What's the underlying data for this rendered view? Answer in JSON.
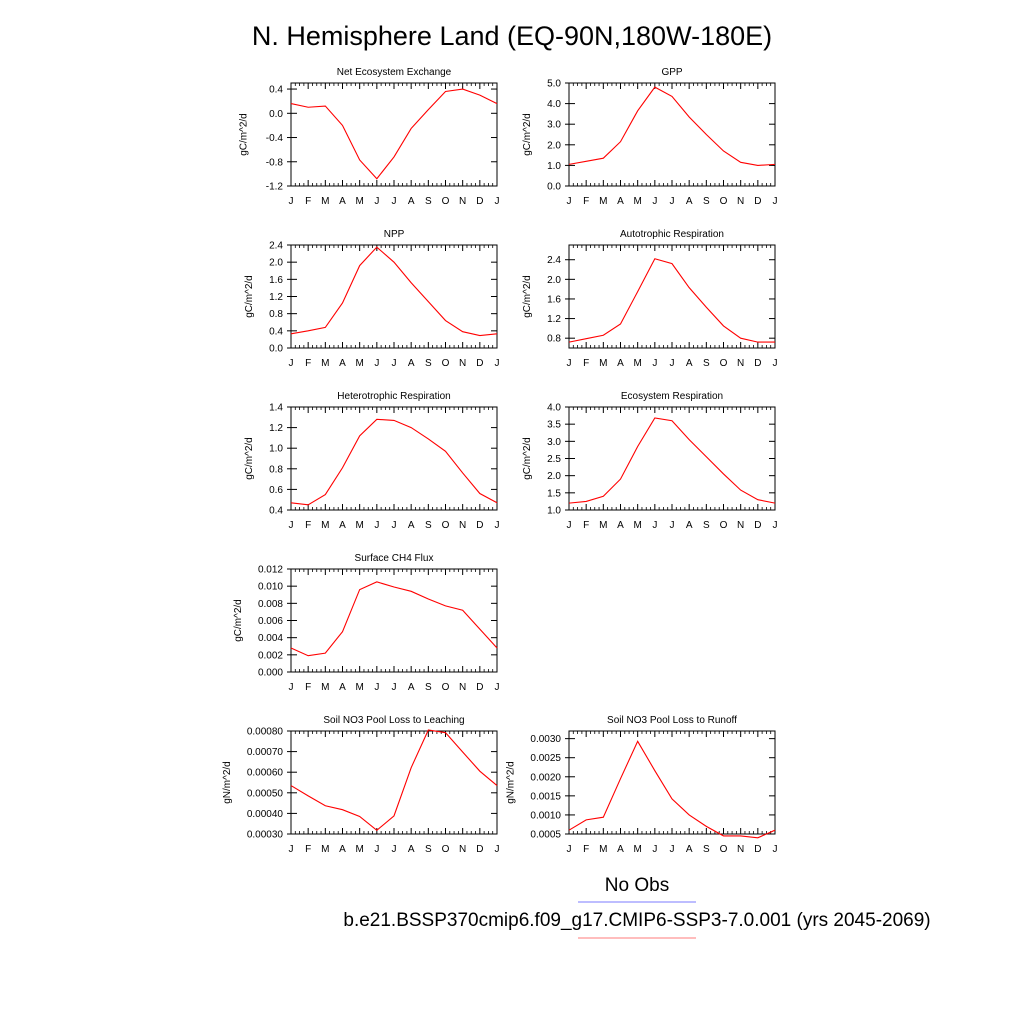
{
  "figure": {
    "title": "N. Hemisphere Land (EQ-90N,180W-180E)",
    "legend": {
      "obs_label": "No Obs",
      "model_label": "b.e21.BSSP370cmip6.f09_g17.CMIP6-SSP3-7.0.001 (yrs 2045-2069)",
      "obs_color": "#7b7bff",
      "model_color": "#ff7b7b"
    },
    "line_color": "#ff0000"
  },
  "chart_data": [
    {
      "type": "line",
      "title": "Net Ecosystem Exchange",
      "ylabel": "gC/m^2/d",
      "categories": [
        "J",
        "F",
        "M",
        "A",
        "M",
        "J",
        "J",
        "A",
        "S",
        "O",
        "N",
        "D",
        "J"
      ],
      "ylim": [
        -1.2,
        0.5
      ],
      "yticks": [
        -1.2,
        -0.8,
        -0.4,
        0.0,
        0.4
      ],
      "ytick_labels": [
        "-1.2",
        "-0.8",
        "-0.4",
        "0.0",
        "0.4"
      ],
      "values": [
        0.16,
        0.1,
        0.12,
        -0.2,
        -0.77,
        -1.08,
        -0.72,
        -0.25,
        0.06,
        0.36,
        0.4,
        0.3,
        0.16
      ]
    },
    {
      "type": "line",
      "title": "GPP",
      "ylabel": "gC/m^2/d",
      "categories": [
        "J",
        "F",
        "M",
        "A",
        "M",
        "J",
        "J",
        "A",
        "S",
        "O",
        "N",
        "D",
        "J"
      ],
      "ylim": [
        0.0,
        5.0
      ],
      "yticks": [
        0.0,
        1.0,
        2.0,
        3.0,
        4.0,
        5.0
      ],
      "ytick_labels": [
        "0.0",
        "1.0",
        "2.0",
        "3.0",
        "4.0",
        "5.0"
      ],
      "values": [
        1.05,
        1.2,
        1.35,
        2.15,
        3.65,
        4.8,
        4.35,
        3.35,
        2.5,
        1.7,
        1.15,
        1.0,
        1.05
      ]
    },
    {
      "type": "line",
      "title": "NPP",
      "ylabel": "gC/m^2/d",
      "categories": [
        "J",
        "F",
        "M",
        "A",
        "M",
        "J",
        "J",
        "A",
        "S",
        "O",
        "N",
        "D",
        "J"
      ],
      "ylim": [
        0.0,
        2.4
      ],
      "yticks": [
        0.0,
        0.4,
        0.8,
        1.2,
        1.6,
        2.0,
        2.4
      ],
      "ytick_labels": [
        "0.0",
        "0.4",
        "0.8",
        "1.2",
        "1.6",
        "2.0",
        "2.4"
      ],
      "values": [
        0.33,
        0.4,
        0.48,
        1.05,
        1.92,
        2.35,
        2.0,
        1.52,
        1.08,
        0.64,
        0.38,
        0.29,
        0.33
      ]
    },
    {
      "type": "line",
      "title": "Autotrophic Respiration",
      "ylabel": "gC/m^2/d",
      "categories": [
        "J",
        "F",
        "M",
        "A",
        "M",
        "J",
        "J",
        "A",
        "S",
        "O",
        "N",
        "D",
        "J"
      ],
      "ylim": [
        0.6,
        2.7
      ],
      "yticks": [
        0.8,
        1.2,
        1.6,
        2.0,
        2.4
      ],
      "ytick_labels": [
        "0.8",
        "1.2",
        "1.6",
        "2.0",
        "2.4"
      ],
      "values": [
        0.72,
        0.79,
        0.86,
        1.09,
        1.75,
        2.42,
        2.32,
        1.83,
        1.43,
        1.05,
        0.8,
        0.72,
        0.72
      ]
    },
    {
      "type": "line",
      "title": "Heterotrophic Respiration",
      "ylabel": "gC/m^2/d",
      "categories": [
        "J",
        "F",
        "M",
        "A",
        "M",
        "J",
        "J",
        "A",
        "S",
        "O",
        "N",
        "D",
        "J"
      ],
      "ylim": [
        0.4,
        1.4
      ],
      "yticks": [
        0.4,
        0.6,
        0.8,
        1.0,
        1.2,
        1.4
      ],
      "ytick_labels": [
        "0.4",
        "0.6",
        "0.8",
        "1.0",
        "1.2",
        "1.4"
      ],
      "values": [
        0.47,
        0.45,
        0.55,
        0.81,
        1.12,
        1.28,
        1.27,
        1.2,
        1.09,
        0.97,
        0.76,
        0.56,
        0.47
      ]
    },
    {
      "type": "line",
      "title": "Ecosystem Respiration",
      "ylabel": "gC/m^2/d",
      "categories": [
        "J",
        "F",
        "M",
        "A",
        "M",
        "J",
        "J",
        "A",
        "S",
        "O",
        "N",
        "D",
        "J"
      ],
      "ylim": [
        1.0,
        4.0
      ],
      "yticks": [
        1.0,
        1.5,
        2.0,
        2.5,
        3.0,
        3.5,
        4.0
      ],
      "ytick_labels": [
        "1.0",
        "1.5",
        "2.0",
        "2.5",
        "3.0",
        "3.5",
        "4.0"
      ],
      "values": [
        1.2,
        1.25,
        1.4,
        1.9,
        2.85,
        3.68,
        3.6,
        3.05,
        2.55,
        2.05,
        1.58,
        1.3,
        1.2
      ]
    },
    {
      "type": "line",
      "title": "Surface CH4 Flux",
      "ylabel": "gC/m^2/d",
      "categories": [
        "J",
        "F",
        "M",
        "A",
        "M",
        "J",
        "J",
        "A",
        "S",
        "O",
        "N",
        "D",
        "J"
      ],
      "ylim": [
        0.0,
        0.012
      ],
      "yticks": [
        0.0,
        0.002,
        0.004,
        0.006,
        0.008,
        0.01,
        0.012
      ],
      "ytick_labels": [
        "0.000",
        "0.002",
        "0.004",
        "0.006",
        "0.008",
        "0.010",
        "0.012"
      ],
      "values": [
        0.0028,
        0.0019,
        0.0022,
        0.0047,
        0.0096,
        0.0105,
        0.0099,
        0.0094,
        0.0085,
        0.0077,
        0.0072,
        0.005,
        0.0028
      ]
    },
    {
      "type": "line",
      "title": "Soil NO3 Pool Loss to Leaching",
      "ylabel": "gN/m^2/d",
      "categories": [
        "J",
        "F",
        "M",
        "A",
        "M",
        "J",
        "J",
        "A",
        "S",
        "O",
        "N",
        "D",
        "J"
      ],
      "ylim": [
        0.0003,
        0.0008
      ],
      "yticks": [
        0.0003,
        0.0004,
        0.0005,
        0.0006,
        0.0007,
        0.0008
      ],
      "ytick_labels": [
        "0.00030",
        "0.00040",
        "0.00050",
        "0.00060",
        "0.00070",
        "0.00080"
      ],
      "values": [
        0.000535,
        0.000485,
        0.000437,
        0.000418,
        0.000385,
        0.000318,
        0.000388,
        0.000622,
        0.000805,
        0.000792,
        0.000698,
        0.000605,
        0.000535
      ]
    },
    {
      "type": "line",
      "title": "Soil NO3 Pool Loss to Runoff",
      "ylabel": "gN/m^2/d",
      "categories": [
        "J",
        "F",
        "M",
        "A",
        "M",
        "J",
        "J",
        "A",
        "S",
        "O",
        "N",
        "D",
        "J"
      ],
      "ylim": [
        0.0005,
        0.0032
      ],
      "yticks": [
        0.0005,
        0.001,
        0.0015,
        0.002,
        0.0025,
        0.003
      ],
      "ytick_labels": [
        "0.0005",
        "0.0010",
        "0.0015",
        "0.0020",
        "0.0025",
        "0.0030"
      ],
      "values": [
        0.0006,
        0.00087,
        0.00094,
        0.00195,
        0.00293,
        0.00216,
        0.00142,
        0.001,
        0.0007,
        0.00045,
        0.00045,
        0.0004,
        0.0006
      ]
    }
  ]
}
